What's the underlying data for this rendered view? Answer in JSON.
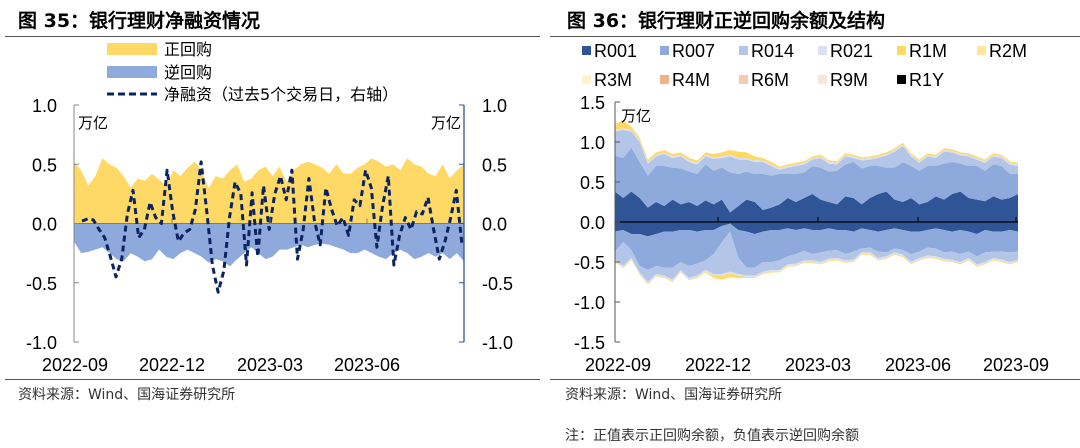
{
  "left": {
    "title": "图 35：银行理财净融资情况",
    "source": "资料来源：Wind、国海证券研究所",
    "unit_left": "万亿",
    "unit_right": "万亿"
  },
  "right": {
    "title": "图 36：银行理财正逆回购余额及结构",
    "source": "资料来源：Wind、国海证券研究所",
    "note": "注：正值表示正回购余额，负值表示逆回购余额",
    "unit": "万亿"
  },
  "chart_data": [
    {
      "type": "area",
      "title": "图 35：银行理财净融资情况",
      "ylabel": "万亿",
      "y2label": "万亿",
      "ylim": [
        -1.0,
        1.0
      ],
      "y2lim": [
        -1.0,
        1.0
      ],
      "yticks": [
        "1.0",
        "0.5",
        "0.0",
        "-0.5",
        "-1.0"
      ],
      "y2ticks": [
        "1.0",
        "0.5",
        "0.0",
        "-0.5",
        "-1.0"
      ],
      "xticks": [
        "2022-09",
        "2022-12",
        "2023-03",
        "2023-06"
      ],
      "x_range": [
        "2022-09",
        "2023-09"
      ],
      "legend_position": "top",
      "legend": [
        "正回购",
        "逆回购",
        "净融资（过去5个交易日，右轴）"
      ],
      "colors": {
        "repo": "#FFD966",
        "reverse": "#8EA9DB",
        "net": "#0B2461"
      },
      "series": [
        {
          "name": "正回购",
          "axis": "left",
          "values": [
            0.52,
            0.45,
            0.32,
            0.4,
            0.55,
            0.5,
            0.47,
            0.4,
            0.3,
            0.38,
            0.36,
            0.42,
            0.37,
            0.32,
            0.45,
            0.4,
            0.47,
            0.52,
            0.45,
            0.3,
            0.4,
            0.38,
            0.45,
            0.5,
            0.35,
            0.38,
            0.45,
            0.48,
            0.4,
            0.48,
            0.35,
            0.45,
            0.5,
            0.52,
            0.5,
            0.47,
            0.42,
            0.5,
            0.42,
            0.42,
            0.47,
            0.5,
            0.55,
            0.52,
            0.48,
            0.5,
            0.45,
            0.55,
            0.5,
            0.48,
            0.42,
            0.4,
            0.5,
            0.38,
            0.45,
            0.5
          ]
        },
        {
          "name": "逆回购",
          "axis": "left",
          "values": [
            -0.15,
            -0.25,
            -0.24,
            -0.22,
            -0.2,
            -0.25,
            -0.3,
            -0.32,
            -0.25,
            -0.28,
            -0.32,
            -0.3,
            -0.22,
            -0.28,
            -0.3,
            -0.25,
            -0.22,
            -0.25,
            -0.28,
            -0.33,
            -0.3,
            -0.32,
            -0.36,
            -0.3,
            -0.25,
            -0.2,
            -0.25,
            -0.3,
            -0.28,
            -0.22,
            -0.22,
            -0.2,
            -0.18,
            -0.2,
            -0.18,
            -0.17,
            -0.18,
            -0.2,
            -0.22,
            -0.25,
            -0.25,
            -0.22,
            -0.25,
            -0.28,
            -0.3,
            -0.25,
            -0.22,
            -0.25,
            -0.3,
            -0.28,
            -0.25,
            -0.28,
            -0.25,
            -0.3,
            -0.25,
            -0.32
          ]
        },
        {
          "name": "净融资（过去5个交易日，右轴）",
          "axis": "right",
          "values": [
            0.02,
            0.04,
            0.03,
            -0.05,
            -0.12,
            -0.28,
            -0.45,
            -0.3,
            0.08,
            0.28,
            -0.12,
            -0.05,
            0.18,
            0.05,
            0.0,
            0.45,
            0.1,
            -0.15,
            -0.08,
            -0.05,
            0.12,
            0.52,
            0.1,
            -0.35,
            -0.58,
            -0.4,
            0.05,
            0.35,
            0.25,
            -0.35,
            0.26,
            -0.28,
            0.32,
            -0.05,
            0.25,
            0.4,
            0.2,
            0.45,
            -0.3,
            -0.05,
            0.38,
            0.02,
            -0.18,
            0.3,
            0.12,
            -0.02,
            0.05,
            -0.1,
            0.2,
            0.15,
            0.45,
            0.3,
            -0.2,
            0.15,
            0.4,
            -0.35,
            -0.1,
            0.05,
            -0.05,
            0.1,
            0.08,
            0.22,
            -0.05,
            -0.3,
            -0.15,
            0.05,
            0.28,
            -0.18
          ]
        }
      ]
    },
    {
      "type": "area",
      "stacked": true,
      "title": "图 36：银行理财正逆回购余额及结构",
      "ylabel": "万亿",
      "ylim": [
        -1.5,
        1.5
      ],
      "yticks": [
        "1.5",
        "1.0",
        "0.5",
        "0.0",
        "-0.5",
        "-1.0",
        "-1.5"
      ],
      "xticks": [
        "2022-09",
        "2022-12",
        "2023-03",
        "2023-06",
        "2023-09"
      ],
      "legend_position": "top",
      "legend": [
        {
          "name": "R001",
          "color": "#2F5597"
        },
        {
          "name": "R007",
          "color": "#8EA9DB"
        },
        {
          "name": "R014",
          "color": "#B4C6E7"
        },
        {
          "name": "R021",
          "color": "#D9E1F2"
        },
        {
          "name": "R1M",
          "color": "#FFD966"
        },
        {
          "name": "R2M",
          "color": "#FFE699"
        },
        {
          "name": "R3M",
          "color": "#FFF2CC"
        },
        {
          "name": "R4M",
          "color": "#F4B183"
        },
        {
          "name": "R6M",
          "color": "#F8CBAD"
        },
        {
          "name": "R9M",
          "color": "#FBE5D6"
        },
        {
          "name": "R1Y",
          "color": "#000000"
        }
      ],
      "positive_series": [
        {
          "name": "R001",
          "values": [
            0.38,
            0.3,
            0.38,
            0.3,
            0.18,
            0.25,
            0.2,
            0.28,
            0.22,
            0.25,
            0.2,
            0.27,
            0.22,
            0.28,
            0.12,
            0.2,
            0.28,
            0.25,
            0.15,
            0.18,
            0.22,
            0.3,
            0.25,
            0.3,
            0.35,
            0.28,
            0.25,
            0.22,
            0.32,
            0.3,
            0.22,
            0.3,
            0.35,
            0.38,
            0.28,
            0.25,
            0.3,
            0.22,
            0.25,
            0.32,
            0.28,
            0.35,
            0.38,
            0.3,
            0.28,
            0.26,
            0.32,
            0.28,
            0.3,
            0.35
          ]
        },
        {
          "name": "R007",
          "values": [
            0.45,
            0.5,
            0.55,
            0.45,
            0.4,
            0.45,
            0.5,
            0.4,
            0.45,
            0.38,
            0.4,
            0.45,
            0.42,
            0.4,
            0.5,
            0.4,
            0.35,
            0.35,
            0.45,
            0.4,
            0.38,
            0.3,
            0.35,
            0.32,
            0.35,
            0.4,
            0.38,
            0.42,
            0.4,
            0.45,
            0.45,
            0.4,
            0.35,
            0.3,
            0.4,
            0.5,
            0.4,
            0.42,
            0.45,
            0.38,
            0.45,
            0.4,
            0.35,
            0.4,
            0.42,
            0.38,
            0.4,
            0.42,
            0.3,
            0.25
          ]
        },
        {
          "name": "R014",
          "values": [
            0.3,
            0.35,
            0.2,
            0.25,
            0.15,
            0.12,
            0.15,
            0.12,
            0.15,
            0.12,
            0.12,
            0.1,
            0.15,
            0.12,
            0.2,
            0.18,
            0.15,
            0.15,
            0.15,
            0.12,
            0.05,
            0.08,
            0.1,
            0.1,
            0.08,
            0.12,
            0.1,
            0.08,
            0.1,
            0.05,
            0.1,
            0.08,
            0.1,
            0.15,
            0.2,
            0.2,
            0.12,
            0.1,
            0.12,
            0.1,
            0.15,
            0.12,
            0.1,
            0.12,
            0.08,
            0.1,
            0.1,
            0.1,
            0.12,
            0.1
          ]
        },
        {
          "name": "R021",
          "values": [
            0.02,
            0.02,
            0.02,
            0.02,
            0.02,
            0.02,
            0.02,
            0.02,
            0.02,
            0.02,
            0.02,
            0.02,
            0.02,
            0.02,
            0.02,
            0.02,
            0.02,
            0.02,
            0.02,
            0.02,
            0.02,
            0.02,
            0.02,
            0.02,
            0.02,
            0.02,
            0.02,
            0.02,
            0.02,
            0.02,
            0.02,
            0.02,
            0.02,
            0.02,
            0.02,
            0.02,
            0.02,
            0.02,
            0.02,
            0.02,
            0.02,
            0.02,
            0.02,
            0.02,
            0.02,
            0.02,
            0.02,
            0.02,
            0.02,
            0.02
          ]
        },
        {
          "name": "R1M",
          "values": [
            0.08,
            0.1,
            0.04,
            0.03,
            0.03,
            0.03,
            0.03,
            0.03,
            0.03,
            0.03,
            0.03,
            0.03,
            0.04,
            0.05,
            0.06,
            0.08,
            0.07,
            0.05,
            0.03,
            0.03,
            0.02,
            0.02,
            0.02,
            0.02,
            0.02,
            0.02,
            0.02,
            0.02,
            0.02,
            0.02,
            0.02,
            0.02,
            0.02,
            0.02,
            0.02,
            0.02,
            0.02,
            0.02,
            0.02,
            0.02,
            0.02,
            0.02,
            0.02,
            0.02,
            0.02,
            0.02,
            0.02,
            0.02,
            0.02,
            0.02
          ]
        }
      ],
      "negative_series": [
        {
          "name": "R001",
          "values": [
            -0.12,
            -0.1,
            -0.15,
            -0.15,
            -0.18,
            -0.15,
            -0.12,
            -0.12,
            -0.1,
            -0.1,
            -0.12,
            -0.1,
            -0.1,
            -0.05,
            -0.02,
            -0.1,
            -0.12,
            -0.15,
            -0.12,
            -0.1,
            -0.1,
            -0.08,
            -0.1,
            -0.08,
            -0.1,
            -0.1,
            -0.08,
            -0.1,
            -0.1,
            -0.12,
            -0.08,
            -0.1,
            -0.12,
            -0.1,
            -0.08,
            -0.1,
            -0.12,
            -0.12,
            -0.1,
            -0.08,
            -0.1,
            -0.12,
            -0.1,
            -0.12,
            -0.15,
            -0.1,
            -0.12,
            -0.12,
            -0.1,
            -0.12
          ]
        },
        {
          "name": "R007",
          "values": [
            -0.25,
            -0.15,
            -0.2,
            -0.4,
            -0.42,
            -0.4,
            -0.45,
            -0.45,
            -0.4,
            -0.45,
            -0.4,
            -0.38,
            -0.3,
            -0.2,
            -0.1,
            -0.35,
            -0.45,
            -0.42,
            -0.38,
            -0.4,
            -0.38,
            -0.35,
            -0.3,
            -0.28,
            -0.3,
            -0.28,
            -0.28,
            -0.25,
            -0.3,
            -0.25,
            -0.25,
            -0.22,
            -0.25,
            -0.28,
            -0.25,
            -0.25,
            -0.28,
            -0.25,
            -0.22,
            -0.25,
            -0.28,
            -0.25,
            -0.3,
            -0.25,
            -0.28,
            -0.28,
            -0.25,
            -0.25,
            -0.28,
            -0.25
          ]
        },
        {
          "name": "R014",
          "values": [
            -0.1,
            -0.3,
            -0.1,
            -0.08,
            -0.15,
            -0.1,
            -0.1,
            -0.15,
            -0.1,
            -0.15,
            -0.15,
            -0.12,
            -0.25,
            -0.4,
            -0.5,
            -0.2,
            -0.1,
            -0.1,
            -0.12,
            -0.1,
            -0.12,
            -0.1,
            -0.12,
            -0.12,
            -0.08,
            -0.12,
            -0.1,
            -0.1,
            -0.08,
            -0.1,
            -0.05,
            -0.06,
            -0.08,
            -0.05,
            -0.05,
            -0.06,
            -0.1,
            -0.08,
            -0.1,
            -0.1,
            -0.08,
            -0.1,
            -0.1,
            -0.08,
            -0.1,
            -0.12,
            -0.08,
            -0.1,
            -0.12,
            -0.1
          ]
        },
        {
          "name": "R021",
          "values": [
            -0.02,
            -0.02,
            -0.02,
            -0.02,
            -0.02,
            -0.02,
            -0.02,
            -0.02,
            -0.02,
            -0.02,
            -0.02,
            -0.02,
            -0.02,
            -0.02,
            -0.02,
            -0.02,
            -0.02,
            -0.02,
            -0.02,
            -0.02,
            -0.02,
            -0.02,
            -0.02,
            -0.02,
            -0.02,
            -0.02,
            -0.02,
            -0.02,
            -0.02,
            -0.02,
            -0.02,
            -0.02,
            -0.02,
            -0.02,
            -0.02,
            -0.02,
            -0.02,
            -0.02,
            -0.02,
            -0.02,
            -0.02,
            -0.02,
            -0.02,
            -0.02,
            -0.02,
            -0.02,
            -0.02,
            -0.02,
            -0.02,
            -0.02
          ]
        },
        {
          "name": "R1M",
          "values": [
            -0.01,
            -0.01,
            -0.01,
            -0.01,
            -0.01,
            -0.01,
            -0.01,
            -0.01,
            -0.01,
            -0.01,
            -0.01,
            -0.01,
            -0.03,
            -0.05,
            -0.05,
            -0.03,
            -0.01,
            -0.01,
            -0.01,
            -0.01,
            -0.01,
            -0.01,
            -0.01,
            -0.01,
            -0.01,
            -0.01,
            -0.01,
            -0.01,
            -0.01,
            -0.01,
            -0.01,
            -0.01,
            -0.01,
            -0.01,
            -0.01,
            -0.01,
            -0.01,
            -0.01,
            -0.01,
            -0.01,
            -0.01,
            -0.01,
            -0.01,
            -0.01,
            -0.01,
            -0.01,
            -0.01,
            -0.01,
            -0.01,
            -0.01
          ]
        }
      ]
    }
  ]
}
